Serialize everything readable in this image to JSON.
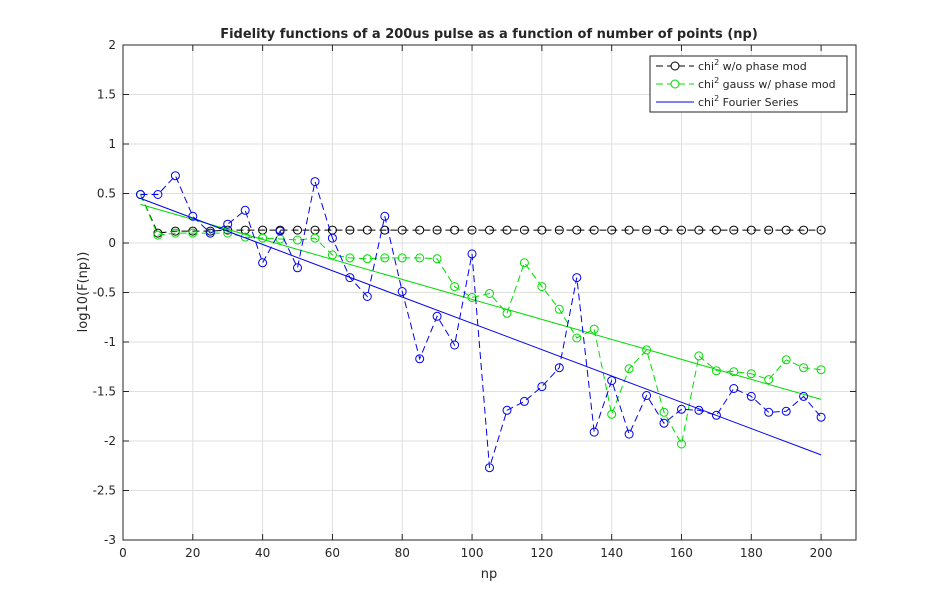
{
  "chart_data": {
    "type": "line",
    "title": "Fidelity functions of a 200us pulse as a function of number of points (np)",
    "xlabel": "np",
    "ylabel": "log10(F(np))",
    "xlim": [
      0,
      210
    ],
    "ylim": [
      -3,
      2
    ],
    "grid": true,
    "legend_position": "top-right",
    "xticks": [
      "0",
      "20",
      "40",
      "60",
      "80",
      "100",
      "120",
      "140",
      "160",
      "180",
      "200"
    ],
    "yticks": [
      "2",
      "1.5",
      "1",
      "0.5",
      "0",
      "-0.5",
      "-1",
      "-1.5",
      "-2",
      "-2.5",
      "-3"
    ],
    "series": [
      {
        "name": "chi2 w/o phase mod",
        "legend_label": "chi",
        "legend_sup": "2",
        "legend_rest": " w/o phase mod",
        "color": "#000000",
        "style": "dashed-circle",
        "x": [
          5,
          10,
          15,
          20,
          25,
          30,
          35,
          40,
          45,
          50,
          55,
          60,
          65,
          70,
          75,
          80,
          85,
          90,
          95,
          100,
          105,
          110,
          115,
          120,
          125,
          130,
          135,
          140,
          145,
          150,
          155,
          160,
          165,
          170,
          175,
          180,
          185,
          190,
          195,
          200
        ],
        "y": [
          0.49,
          0.1,
          0.12,
          0.12,
          0.12,
          0.13,
          0.13,
          0.13,
          0.13,
          0.13,
          0.13,
          0.13,
          0.13,
          0.13,
          0.13,
          0.13,
          0.13,
          0.13,
          0.13,
          0.13,
          0.13,
          0.13,
          0.13,
          0.13,
          0.13,
          0.13,
          0.13,
          0.13,
          0.13,
          0.13,
          0.13,
          0.13,
          0.13,
          0.13,
          0.13,
          0.13,
          0.13,
          0.13,
          0.13,
          0.13
        ]
      },
      {
        "name": "chi2 gauss w/ phase mod",
        "legend_label": "chi",
        "legend_sup": "2",
        "legend_rest": " gauss w/ phase mod",
        "color": "#00dd00",
        "style": "dashed-circle",
        "x": [
          5,
          10,
          15,
          20,
          25,
          30,
          35,
          40,
          45,
          50,
          55,
          60,
          65,
          70,
          75,
          80,
          85,
          90,
          95,
          100,
          105,
          110,
          115,
          120,
          125,
          130,
          135,
          140,
          145,
          150,
          155,
          160,
          165,
          170,
          175,
          180,
          185,
          190,
          195,
          200
        ],
        "y": [
          0.49,
          0.08,
          0.1,
          0.1,
          0.1,
          0.1,
          0.06,
          0.05,
          0.04,
          0.03,
          0.05,
          -0.12,
          -0.15,
          -0.16,
          -0.15,
          -0.15,
          -0.15,
          -0.16,
          -0.44,
          -0.55,
          -0.51,
          -0.71,
          -0.2,
          -0.44,
          -0.67,
          -0.96,
          -0.87,
          -1.73,
          -1.27,
          -1.08,
          -1.71,
          -2.03,
          -1.14,
          -1.29,
          -1.3,
          -1.32,
          -1.38,
          -1.18,
          -1.26,
          -1.28
        ]
      },
      {
        "name": "chi2 gauss w/ phase mod (fit)",
        "color": "#00dd00",
        "style": "solid",
        "legend": false,
        "x": [
          5,
          200
        ],
        "y": [
          0.39,
          -1.58
        ]
      },
      {
        "name": "chi2 Fourier Series (data)",
        "color": "#0000ee",
        "style": "dashed-circle",
        "legend": false,
        "x": [
          5,
          10,
          15,
          20,
          25,
          30,
          35,
          40,
          45,
          50,
          55,
          60,
          65,
          70,
          75,
          80,
          85,
          90,
          95,
          100,
          105,
          110,
          115,
          120,
          125,
          130,
          135,
          140,
          145,
          150,
          155,
          160,
          165,
          170,
          175,
          180,
          185,
          190,
          195,
          200
        ],
        "y": [
          0.49,
          0.49,
          0.68,
          0.27,
          0.1,
          0.19,
          0.33,
          -0.2,
          0.12,
          -0.25,
          0.62,
          0.05,
          -0.35,
          -0.54,
          0.27,
          -0.49,
          -1.17,
          -0.74,
          -1.03,
          -0.11,
          -2.27,
          -1.69,
          -1.6,
          -1.45,
          -1.26,
          -0.35,
          -1.91,
          -1.39,
          -1.93,
          -1.54,
          -1.82,
          -1.68,
          -1.69,
          -1.74,
          -1.47,
          -1.55,
          -1.71,
          -1.7,
          -1.55,
          -1.76
        ]
      },
      {
        "name": "chi2 Fourier Series",
        "legend_label": "chi",
        "legend_sup": "2",
        "legend_rest": " Fourier Series",
        "color": "#0000ee",
        "style": "solid",
        "x": [
          5,
          200
        ],
        "y": [
          0.45,
          -2.14
        ]
      }
    ]
  }
}
